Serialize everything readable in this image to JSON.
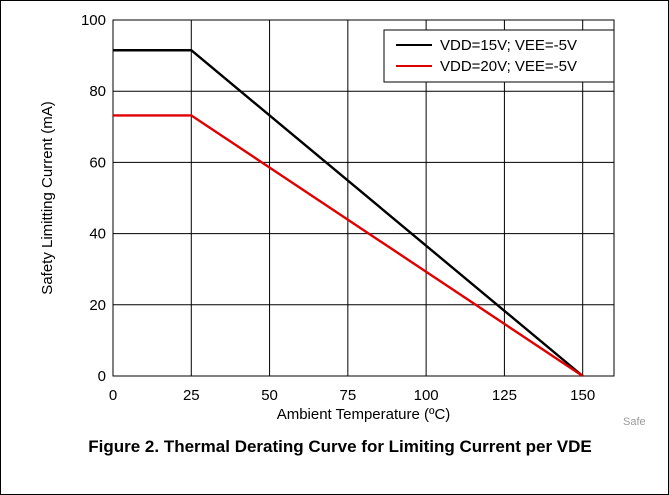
{
  "caption": "Figure 2. Thermal Derating Curve for Limiting Current per VDE",
  "watermark": "Safe",
  "chart_data": {
    "type": "line",
    "title": "",
    "xlabel": "Ambient Temperature (ºC)",
    "ylabel": "Safety Limitting Current (mA)",
    "xlim": [
      0,
      160
    ],
    "ylim": [
      0,
      100
    ],
    "xticks": [
      0,
      25,
      50,
      75,
      100,
      125,
      150
    ],
    "yticks": [
      0,
      20,
      40,
      60,
      80,
      100
    ],
    "grid": true,
    "legend_position": "top-right",
    "series": [
      {
        "name": "VDD=15V; VEE=-5V",
        "color": "#000000",
        "x": [
          0,
          25,
          150
        ],
        "y": [
          91.5,
          91.5,
          0
        ]
      },
      {
        "name": "VDD=20V; VEE=-5V",
        "color": "#e00000",
        "x": [
          0,
          25,
          150
        ],
        "y": [
          73.2,
          73.2,
          0
        ]
      }
    ]
  }
}
